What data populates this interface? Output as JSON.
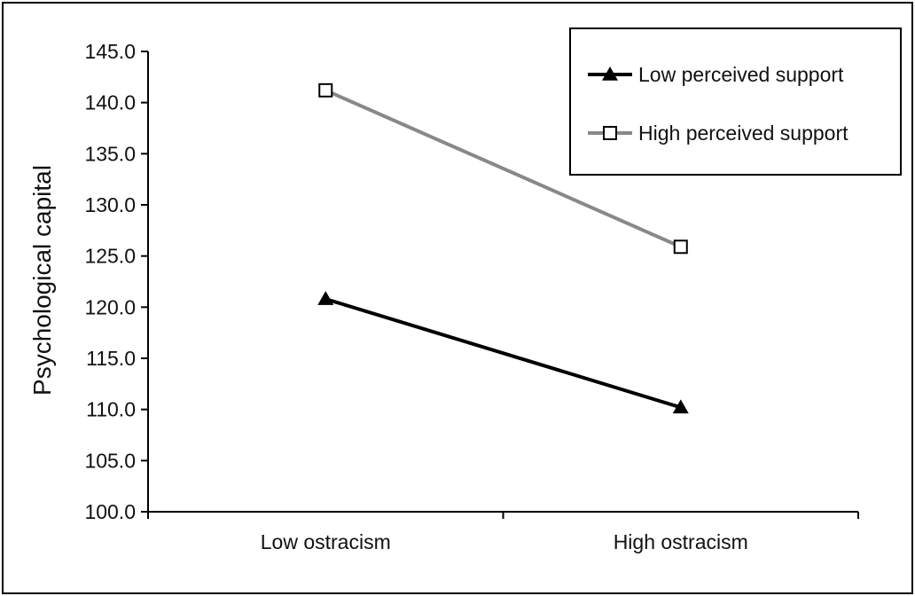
{
  "chart_data": {
    "type": "line",
    "categories": [
      "Low ostracism",
      "High ostracism"
    ],
    "series": [
      {
        "name": "Low perceived support",
        "values": [
          120.8,
          110.2
        ],
        "color": "#000000",
        "marker": "filled-triangle"
      },
      {
        "name": "High perceived support",
        "values": [
          141.2,
          125.9
        ],
        "color": "#888888",
        "marker": "open-square"
      }
    ],
    "title": "",
    "xlabel": "",
    "ylabel": "Psychological capital",
    "ylim": [
      100,
      145
    ],
    "yticks": [
      "100.0",
      "105.0",
      "110.0",
      "115.0",
      "120.0",
      "125.0",
      "130.0",
      "135.0",
      "140.0",
      "145.0"
    ],
    "grid": false,
    "legend_position": "top-right"
  }
}
